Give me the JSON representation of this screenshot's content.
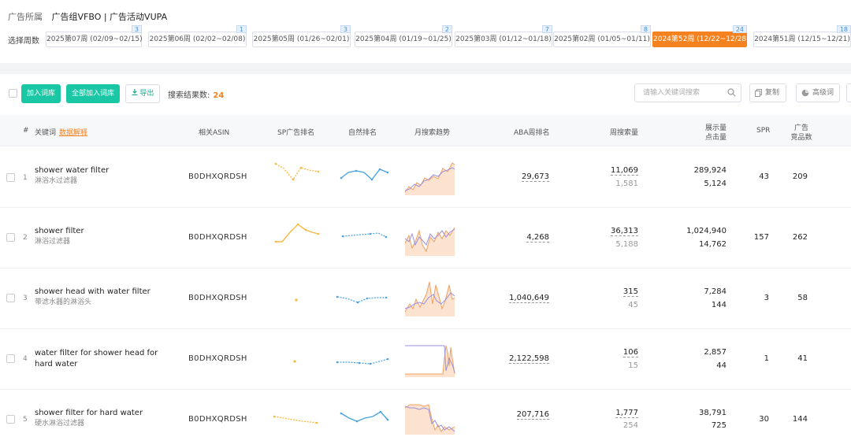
{
  "breadcrumb": {
    "label": "广告所属",
    "value": "广告组VFBO | 广告活动VUPA"
  },
  "week_selector": {
    "label": "选择周数",
    "tabs": [
      {
        "label": "2025第07周 (02/09~02/15)",
        "count": "3",
        "active": false
      },
      {
        "label": "2025第06周 (02/02~02/08)",
        "count": "1",
        "active": false
      },
      {
        "label": "2025第05周 (01/26~02/01)",
        "count": "3",
        "active": false
      },
      {
        "label": "2025第04周 (01/19~01/25)",
        "count": "2",
        "active": false
      },
      {
        "label": "2025第03周 (01/12~01/18)",
        "count": "7",
        "active": false
      },
      {
        "label": "2025第02周 (01/05~01/11)",
        "count": "8",
        "active": false
      },
      {
        "label": "2024第52周 (12/22~12/28)",
        "count": "24",
        "active": true
      },
      {
        "label": "2024第51周 (12/15~12/21)",
        "count": "18",
        "active": false
      }
    ]
  },
  "toolbar": {
    "add_label": "加入词库",
    "add_all_label": "全部加入词库",
    "export_label": "导出",
    "result_label": "搜索结果数:",
    "result_count": "24",
    "search_placeholder": "请输入关键词搜索",
    "copy_label": "复制",
    "advanced_label": "高级词"
  },
  "table": {
    "headers": {
      "index": "#",
      "keyword": "关键词",
      "keyword_link": "数据解释",
      "asin": "相关ASIN",
      "sp_rank": "SP广告排名",
      "organic_rank": "自然排名",
      "monthly_trend": "月搜索趋势",
      "aba_rank": "ABA周排名",
      "weekly_search": "周搜索量",
      "impressions": "展示量",
      "clicks": "点击量",
      "spr": "SPR",
      "ad_products_line1": "广告",
      "ad_products_line2": "竞品数"
    },
    "rows": [
      {
        "index": "1",
        "keyword_en": "shower water filter",
        "keyword_zh": "淋浴水过滤器",
        "asin": "B0DHXQRDSH",
        "aba_rank": "29,673",
        "weekly_search": "11,069",
        "weekly_search_sub": "1,581",
        "impressions": "289,924",
        "clicks": "5,124",
        "spr": "43",
        "ad_products": "209"
      },
      {
        "index": "2",
        "keyword_en": "shower filter",
        "keyword_zh": "淋浴过滤器",
        "asin": "B0DHXQRDSH",
        "aba_rank": "4,268",
        "weekly_search": "36,313",
        "weekly_search_sub": "5,188",
        "impressions": "1,024,940",
        "clicks": "14,762",
        "spr": "157",
        "ad_products": "262"
      },
      {
        "index": "3",
        "keyword_en": "shower head with water filter",
        "keyword_zh": "带滤水器的淋浴头",
        "asin": "B0DHXQRDSH",
        "aba_rank": "1,040,649",
        "weekly_search": "315",
        "weekly_search_sub": "45",
        "impressions": "7,284",
        "clicks": "144",
        "spr": "3",
        "ad_products": "58"
      },
      {
        "index": "4",
        "keyword_en": "water filter for shower head for hard water",
        "keyword_zh": "",
        "asin": "B0DHXQRDSH",
        "aba_rank": "2,122,598",
        "weekly_search": "106",
        "weekly_search_sub": "15",
        "impressions": "2,857",
        "clicks": "44",
        "spr": "1",
        "ad_products": "41"
      },
      {
        "index": "5",
        "keyword_en": "shower filter for hard water",
        "keyword_zh": "硬水淋浴过滤器",
        "asin": "B0DHXQRDSH",
        "aba_rank": "207,716",
        "weekly_search": "1,777",
        "weekly_search_sub": "254",
        "impressions": "38,791",
        "clicks": "725",
        "spr": "30",
        "ad_products": "144"
      }
    ]
  },
  "colors": {
    "accent_orange": "#f5821f",
    "accent_green": "#19c7a5",
    "sp_line": "#f5b942",
    "organic_line": "#4aa3df",
    "trend_fill": "#fbe3cf",
    "trend_line_orange": "#f0a060",
    "trend_line_purple": "#9b8fe0"
  },
  "icons": {
    "export": "download-icon",
    "search": "search-icon",
    "copy": "copy-icon",
    "advanced": "pie-chart-icon"
  }
}
